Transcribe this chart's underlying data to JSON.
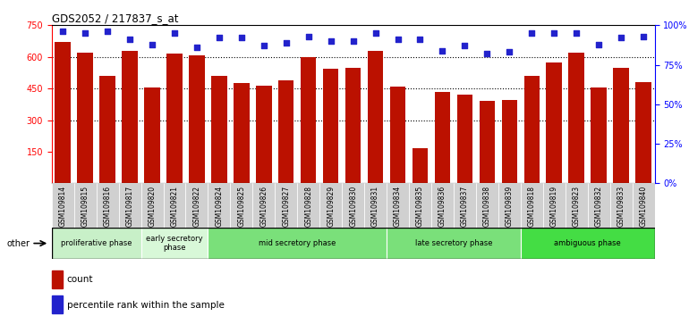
{
  "title": "GDS2052 / 217837_s_at",
  "samples": [
    "GSM109814",
    "GSM109815",
    "GSM109816",
    "GSM109817",
    "GSM109820",
    "GSM109821",
    "GSM109822",
    "GSM109824",
    "GSM109825",
    "GSM109826",
    "GSM109827",
    "GSM109828",
    "GSM109829",
    "GSM109830",
    "GSM109831",
    "GSM109834",
    "GSM109835",
    "GSM109836",
    "GSM109837",
    "GSM109838",
    "GSM109839",
    "GSM109818",
    "GSM109819",
    "GSM109823",
    "GSM109832",
    "GSM109833",
    "GSM109840"
  ],
  "counts": [
    670,
    620,
    510,
    630,
    455,
    615,
    607,
    510,
    475,
    463,
    490,
    600,
    545,
    550,
    630,
    460,
    168,
    435,
    420,
    390,
    395,
    510,
    575,
    620,
    455,
    550,
    480
  ],
  "percentiles": [
    96,
    95,
    96,
    91,
    88,
    95,
    86,
    92,
    92,
    87,
    89,
    93,
    90,
    90,
    95,
    91,
    91,
    84,
    87,
    82,
    83,
    95,
    95,
    95,
    88,
    92,
    93
  ],
  "phases": [
    {
      "name": "proliferative phase",
      "start": 0,
      "end": 4,
      "color": "#c8f0c8"
    },
    {
      "name": "early secretory\nphase",
      "start": 4,
      "end": 7,
      "color": "#d8f8d8"
    },
    {
      "name": "mid secretory phase",
      "start": 7,
      "end": 15,
      "color": "#7ae07a"
    },
    {
      "name": "late secretory phase",
      "start": 15,
      "end": 21,
      "color": "#7ae07a"
    },
    {
      "name": "ambiguous phase",
      "start": 21,
      "end": 27,
      "color": "#44dd44"
    }
  ],
  "bar_color": "#bb1100",
  "dot_color": "#2222cc",
  "ylim_left": [
    0,
    750
  ],
  "ylim_right": [
    0,
    100
  ],
  "yticks_left": [
    150,
    300,
    450,
    600,
    750
  ],
  "yticks_right": [
    0,
    25,
    50,
    75,
    100
  ],
  "bg_color": "#ffffff",
  "other_label": "other"
}
